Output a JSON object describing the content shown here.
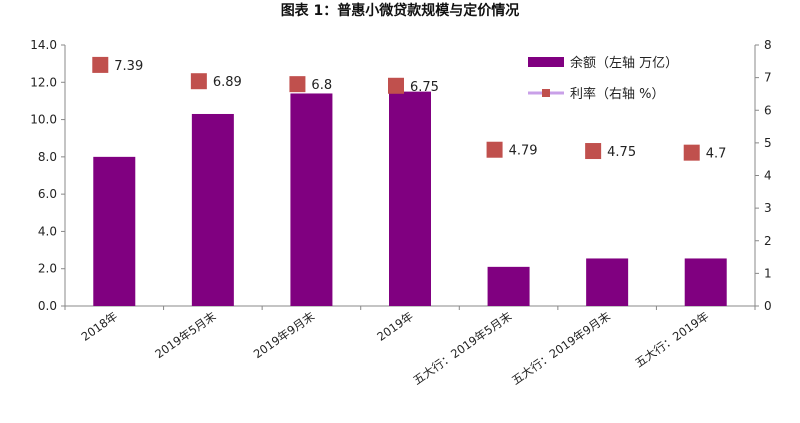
{
  "chart_data": {
    "type": "bar",
    "title": "图表 1：普惠小微贷款规模与定价情况",
    "categories": [
      "2018年",
      "2019年5月末",
      "2019年9月末",
      "2019年",
      "五大行：2019年5月末",
      "五大行：2019年9月末",
      "五大行：2019年"
    ],
    "series": [
      {
        "name": "余额（左轴 万亿）",
        "type": "bar",
        "axis": "left",
        "color": "#800080",
        "values": [
          8.0,
          10.3,
          11.4,
          11.5,
          2.1,
          2.55,
          2.55
        ]
      },
      {
        "name": "利率（右轴 %）",
        "type": "scatter",
        "axis": "right",
        "color": "#c0504d",
        "values": [
          7.39,
          6.89,
          6.8,
          6.75,
          4.79,
          4.75,
          4.7
        ],
        "labels": [
          "7.39",
          "6.89",
          "6.8",
          "6.75",
          "4.79",
          "4.75",
          "4.7"
        ]
      }
    ],
    "y_left": {
      "min": 0,
      "max": 14,
      "step": 2,
      "tick_labels": [
        "0.0",
        "2.0",
        "4.0",
        "6.0",
        "8.0",
        "10.0",
        "12.0",
        "14.0"
      ]
    },
    "y_right": {
      "min": 0,
      "max": 8,
      "step": 1,
      "tick_labels": [
        "0",
        "1",
        "2",
        "3",
        "4",
        "5",
        "6",
        "7",
        "8"
      ]
    },
    "grid": false,
    "legend_position": "top-right"
  }
}
